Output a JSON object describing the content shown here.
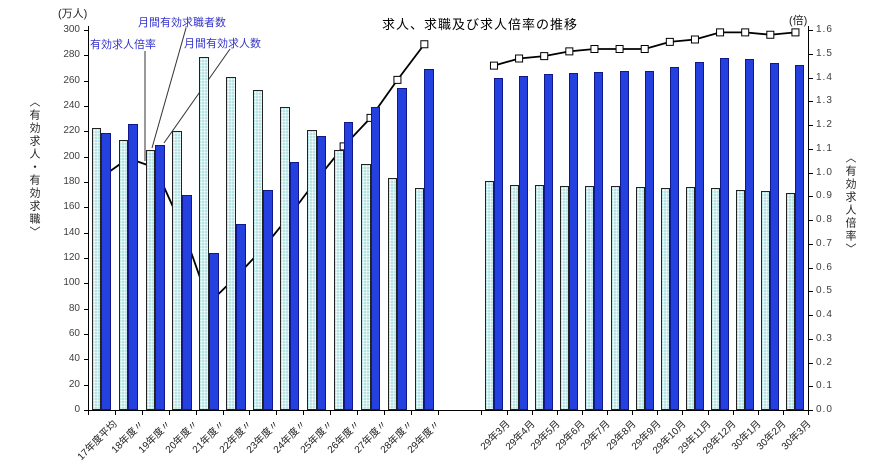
{
  "title": "求人、求職及び求人倍率の推移",
  "left_axis": {
    "unit": "(万人)",
    "title": "〈有効求人・有効求職〉",
    "min": 0,
    "max": 300,
    "step": 20
  },
  "right_axis": {
    "unit": "(倍)",
    "title": "〈有効求人倍率〉",
    "min": 0,
    "max": 1.6,
    "step": 0.1
  },
  "annotations": {
    "ratio_label": "有効求人倍率",
    "seekers_label": "月間有効求職者数",
    "offers_label": "月間有効求人数"
  },
  "colors": {
    "offers_bar": "#2441E0",
    "seekers_bar": "#B9E4E6",
    "line": "#000000",
    "marker_fill": "#FFFFFF",
    "annotation_text": "#3333CC",
    "axis_text": "#404040"
  },
  "chart_data": {
    "type": "bar",
    "title": "求人、求職及び求人倍率の推移",
    "ylabel_left": "〈有効求人・有効求職〉(万人)",
    "ylabel_right": "〈有効求人倍率〉(倍)",
    "left_axis_range": [
      0,
      300
    ],
    "right_axis_range": [
      0,
      1.6
    ],
    "grid": false,
    "series_names": {
      "seekers": "月間有効求職者数",
      "offers": "月間有効求人数",
      "ratio": "有効求人倍率"
    },
    "groups": [
      {
        "name": "fiscal-year-averages",
        "categories": [
          "17年度平均",
          "18年度〃",
          "19年度〃",
          "20年度〃",
          "21年度〃",
          "22年度〃",
          "23年度〃",
          "24年度〃",
          "25年度〃",
          "26年度〃",
          "27年度〃",
          "28年度〃",
          "29年度〃"
        ],
        "seekers": [
          223,
          213,
          205,
          220,
          279,
          263,
          253,
          239,
          221,
          205,
          194,
          183,
          175
        ],
        "offers": [
          219,
          226,
          209,
          170,
          124,
          147,
          174,
          196,
          216,
          227,
          239,
          254,
          269
        ],
        "ratio": [
          0.98,
          1.06,
          1.02,
          0.77,
          0.45,
          0.56,
          0.68,
          0.82,
          0.97,
          1.11,
          1.23,
          1.39,
          1.54
        ]
      },
      {
        "name": "monthly",
        "categories": [
          "29年3月",
          "29年4月",
          "29年5月",
          "29年6月",
          "29年7月",
          "29年8月",
          "29年9月",
          "29年10月",
          "29年11月",
          "29年12月",
          "30年1月",
          "30年2月",
          "30年3月"
        ],
        "seekers": [
          181,
          178,
          178,
          177,
          177,
          177,
          176,
          175,
          176,
          175,
          174,
          173,
          171
        ],
        "offers": [
          262,
          264,
          265,
          266,
          267,
          268,
          268,
          271,
          275,
          278,
          277,
          274,
          272
        ],
        "ratio": [
          1.45,
          1.48,
          1.49,
          1.51,
          1.52,
          1.52,
          1.52,
          1.55,
          1.56,
          1.59,
          1.59,
          1.58,
          1.59
        ]
      }
    ]
  }
}
